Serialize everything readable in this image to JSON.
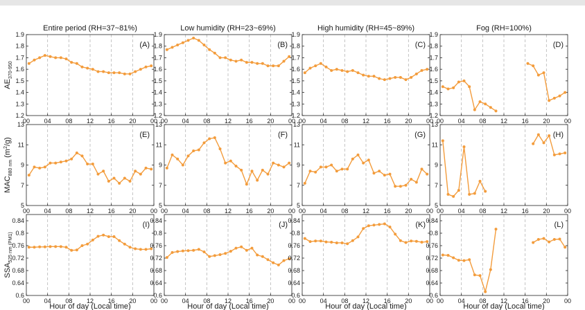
{
  "figure": {
    "xlabel": "Hour of day (Local time)",
    "line_color": "#f39c3c",
    "dash_color": "#b5b5b5",
    "row_ylabels": [
      {
        "main": "AE",
        "sub": "370-950",
        "post": ""
      },
      {
        "main": "MAC",
        "sub": "880 nm",
        "post": " (m",
        "sup": "2",
        "post2": "/g)"
      },
      {
        "main": "SSA",
        "sub": "525 nm (PM1)",
        "post": ""
      }
    ],
    "column_titles": [
      "Entire period (RH=37~81%)",
      "Low humidity (RH=23~69%)",
      "High humidity (RH=45~89%)",
      "Fog (RH=100%)"
    ],
    "xticks": [
      "00",
      "04",
      "08",
      "12",
      "16",
      "20",
      "00"
    ]
  },
  "chart_data": [
    {
      "type": "line",
      "id": "A",
      "row": 0,
      "col": 0,
      "label": "(A)",
      "ylim": [
        1.2,
        1.9
      ],
      "yticks": [
        "1.2",
        "1.3",
        "1.4",
        "1.5",
        "1.6",
        "1.7",
        "1.8",
        "1.9"
      ],
      "x": [
        0,
        1,
        2,
        3,
        4,
        5,
        6,
        7,
        8,
        9,
        10,
        11,
        12,
        13,
        14,
        15,
        16,
        17,
        18,
        19,
        20,
        21,
        22,
        23
      ],
      "values": [
        1.65,
        1.68,
        1.7,
        1.72,
        1.71,
        1.7,
        1.7,
        1.69,
        1.66,
        1.65,
        1.62,
        1.61,
        1.6,
        1.58,
        1.58,
        1.57,
        1.57,
        1.57,
        1.56,
        1.56,
        1.58,
        1.6,
        1.62,
        1.63
      ]
    },
    {
      "type": "line",
      "id": "B",
      "row": 0,
      "col": 1,
      "label": "(B)",
      "ylim": [
        1.2,
        1.9
      ],
      "yticks": [
        "1.2",
        "1.3",
        "1.4",
        "1.5",
        "1.6",
        "1.7",
        "1.8",
        "1.9"
      ],
      "x": [
        0,
        1,
        2,
        3,
        4,
        5,
        6,
        7,
        8,
        9,
        10,
        11,
        12,
        13,
        14,
        15,
        16,
        17,
        18,
        19,
        20,
        21,
        22,
        23
      ],
      "values": [
        1.77,
        1.79,
        1.81,
        1.83,
        1.85,
        1.87,
        1.85,
        1.81,
        1.77,
        1.74,
        1.7,
        1.7,
        1.68,
        1.67,
        1.68,
        1.66,
        1.66,
        1.65,
        1.65,
        1.63,
        1.63,
        1.63,
        1.67,
        1.71
      ]
    },
    {
      "type": "line",
      "id": "C",
      "row": 0,
      "col": 2,
      "label": "(C)",
      "ylim": [
        1.2,
        1.9
      ],
      "yticks": [
        "1.2",
        "1.3",
        "1.4",
        "1.5",
        "1.6",
        "1.7",
        "1.8",
        "1.9"
      ],
      "x": [
        0,
        1,
        2,
        3,
        4,
        5,
        6,
        7,
        8,
        9,
        10,
        11,
        12,
        13,
        14,
        15,
        16,
        17,
        18,
        19,
        20,
        21,
        22,
        23
      ],
      "values": [
        1.57,
        1.61,
        1.63,
        1.65,
        1.62,
        1.59,
        1.6,
        1.59,
        1.58,
        1.59,
        1.57,
        1.55,
        1.54,
        1.54,
        1.52,
        1.51,
        1.52,
        1.53,
        1.53,
        1.51,
        1.53,
        1.56,
        1.59,
        1.6
      ]
    },
    {
      "type": "line",
      "id": "D",
      "row": 0,
      "col": 3,
      "label": "(D)",
      "ylim": [
        1.2,
        1.9
      ],
      "yticks": [
        "1.2",
        "1.3",
        "1.4",
        "1.5",
        "1.6",
        "1.7",
        "1.8",
        "1.9"
      ],
      "segments": [
        {
          "x": [
            0,
            1,
            2,
            3,
            4,
            5,
            6,
            7,
            8,
            9,
            10
          ],
          "values": [
            1.45,
            1.43,
            1.44,
            1.49,
            1.5,
            1.45,
            1.25,
            1.32,
            1.3,
            1.27,
            1.24
          ]
        },
        {
          "x": [
            16,
            17,
            18,
            19,
            20,
            21,
            22,
            23
          ],
          "values": [
            1.65,
            1.63,
            1.55,
            1.57,
            1.33,
            1.35,
            1.37,
            1.4
          ]
        }
      ]
    },
    {
      "type": "line",
      "id": "E",
      "row": 1,
      "col": 0,
      "label": "(E)",
      "ylim": [
        5,
        13
      ],
      "yticks": [
        "5",
        "7",
        "9",
        "11",
        "13"
      ],
      "x": [
        0,
        1,
        2,
        3,
        4,
        5,
        6,
        7,
        8,
        9,
        10,
        11,
        12,
        13,
        14,
        15,
        16,
        17,
        18,
        19,
        20,
        21,
        22,
        23
      ],
      "values": [
        8.0,
        8.8,
        8.7,
        8.8,
        9.2,
        9.2,
        9.3,
        9.4,
        9.6,
        10.2,
        9.9,
        9.1,
        9.1,
        8.1,
        8.4,
        7.4,
        7.7,
        7.2,
        7.7,
        7.4,
        8.4,
        8.1,
        8.7,
        8.6
      ]
    },
    {
      "type": "line",
      "id": "F",
      "row": 1,
      "col": 1,
      "label": "(F)",
      "ylim": [
        5,
        13
      ],
      "yticks": [
        "5",
        "7",
        "9",
        "11",
        "13"
      ],
      "x": [
        0,
        1,
        2,
        3,
        4,
        5,
        6,
        7,
        8,
        9,
        10,
        11,
        12,
        13,
        14,
        15,
        16,
        17,
        18,
        19,
        20,
        21,
        22,
        23
      ],
      "values": [
        8.7,
        10.0,
        9.6,
        9.0,
        9.9,
        10.4,
        10.5,
        11.2,
        11.6,
        11.7,
        10.6,
        9.2,
        9.4,
        8.9,
        8.5,
        7.1,
        8.4,
        7.5,
        8.5,
        8.1,
        9.2,
        9.0,
        8.8,
        9.2
      ]
    },
    {
      "type": "line",
      "id": "G",
      "row": 1,
      "col": 2,
      "label": "(G)",
      "ylim": [
        5,
        13
      ],
      "yticks": [
        "5",
        "7",
        "9",
        "11",
        "13"
      ],
      "x": [
        0,
        1,
        2,
        3,
        4,
        5,
        6,
        7,
        8,
        9,
        10,
        11,
        12,
        13,
        14,
        15,
        16,
        17,
        18,
        19,
        20,
        21,
        22,
        23
      ],
      "values": [
        7.2,
        8.4,
        8.3,
        8.8,
        8.8,
        9.0,
        8.4,
        8.6,
        8.6,
        9.6,
        10.0,
        9.2,
        9.5,
        8.2,
        8.4,
        8.0,
        8.1,
        6.9,
        6.9,
        7.0,
        7.6,
        7.3,
        8.6,
        8.1
      ]
    },
    {
      "type": "line",
      "id": "H",
      "row": 1,
      "col": 3,
      "label": "(H)",
      "ylim": [
        5,
        13
      ],
      "yticks": [
        "5",
        "7",
        "9",
        "11",
        "13"
      ],
      "segments": [
        {
          "x": [
            0,
            1,
            2,
            3,
            4,
            5,
            6,
            7,
            8
          ],
          "values": [
            11.4,
            6.1,
            5.9,
            6.5,
            10.8,
            6.1,
            6.2,
            7.4,
            6.4
          ]
        },
        {
          "x": [
            17,
            18,
            19,
            20,
            21,
            22,
            23
          ],
          "values": [
            11.1,
            12.0,
            11.2,
            11.9,
            10.0,
            10.1,
            10.2
          ]
        }
      ]
    },
    {
      "type": "line",
      "id": "I",
      "row": 2,
      "col": 0,
      "label": "(I)",
      "ylim": [
        0.6,
        0.86
      ],
      "yticks": [
        "0.6",
        "0.64",
        "0.68",
        "0.72",
        "0.76",
        "0.8",
        "0.84"
      ],
      "x": [
        0,
        1,
        2,
        3,
        4,
        5,
        6,
        7,
        8,
        9,
        10,
        11,
        12,
        13,
        14,
        15,
        16,
        17,
        18,
        19,
        20,
        21,
        22,
        23
      ],
      "values": [
        0.755,
        0.755,
        0.756,
        0.756,
        0.757,
        0.757,
        0.757,
        0.755,
        0.745,
        0.746,
        0.76,
        0.765,
        0.778,
        0.79,
        0.794,
        0.789,
        0.789,
        0.776,
        0.765,
        0.755,
        0.75,
        0.748,
        0.748,
        0.75
      ]
    },
    {
      "type": "line",
      "id": "J",
      "row": 2,
      "col": 1,
      "label": "(J)",
      "ylim": [
        0.6,
        0.86
      ],
      "yticks": [
        "0.6",
        "0.64",
        "0.68",
        "0.72",
        "0.76",
        "0.8",
        "0.84"
      ],
      "x": [
        0,
        1,
        2,
        3,
        4,
        5,
        6,
        7,
        8,
        9,
        10,
        11,
        12,
        13,
        14,
        15,
        16,
        17,
        18,
        19,
        20,
        21,
        22,
        23
      ],
      "values": [
        0.722,
        0.738,
        0.741,
        0.743,
        0.744,
        0.745,
        0.748,
        0.74,
        0.725,
        0.728,
        0.731,
        0.735,
        0.742,
        0.752,
        0.756,
        0.745,
        0.752,
        0.73,
        0.725,
        0.715,
        0.705,
        0.698,
        0.712,
        0.718
      ]
    },
    {
      "type": "line",
      "id": "K",
      "row": 2,
      "col": 2,
      "label": "(K)",
      "ylim": [
        0.6,
        0.86
      ],
      "yticks": [
        "0.6",
        "0.64",
        "0.68",
        "0.72",
        "0.76",
        "0.8",
        "0.84"
      ],
      "x": [
        0,
        1,
        2,
        3,
        4,
        5,
        6,
        7,
        8,
        9,
        10,
        11,
        12,
        13,
        14,
        15,
        16,
        17,
        18,
        19,
        20,
        21,
        22,
        23
      ],
      "values": [
        0.783,
        0.773,
        0.775,
        0.775,
        0.772,
        0.771,
        0.769,
        0.769,
        0.766,
        0.776,
        0.788,
        0.815,
        0.824,
        0.826,
        0.828,
        0.83,
        0.82,
        0.797,
        0.776,
        0.77,
        0.775,
        0.774,
        0.771,
        0.773
      ]
    },
    {
      "type": "line",
      "id": "L",
      "row": 2,
      "col": 3,
      "label": "(L)",
      "ylim": [
        0.6,
        0.86
      ],
      "yticks": [
        "0.6",
        "0.64",
        "0.68",
        "0.72",
        "0.76",
        "0.8",
        "0.84"
      ],
      "segments": [
        {
          "x": [
            0,
            1,
            2,
            3,
            4,
            5,
            6,
            7,
            8,
            9,
            10
          ],
          "values": [
            0.73,
            0.729,
            0.721,
            0.713,
            0.712,
            0.715,
            0.666,
            0.664,
            0.612,
            0.683,
            0.813
          ]
        },
        {
          "x": [
            17,
            18,
            19,
            20,
            21,
            22,
            23
          ],
          "values": [
            0.77,
            0.78,
            0.783,
            0.772,
            0.78,
            0.781,
            0.755
          ]
        }
      ]
    }
  ]
}
